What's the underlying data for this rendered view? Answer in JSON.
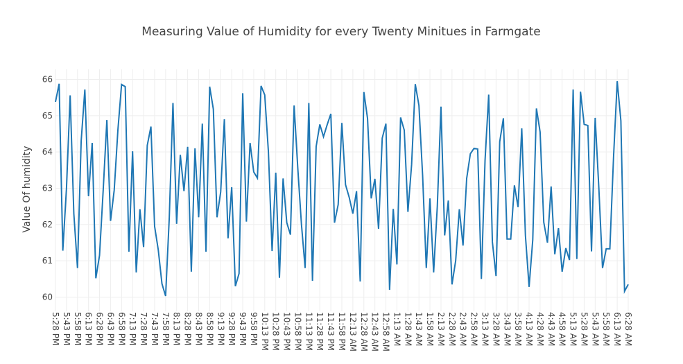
{
  "chart_data": {
    "type": "line",
    "title": "Measuring Value of Humidity for every Twenty Minitues in Farmgate",
    "xlabel": "",
    "ylabel": "Value Of humidity",
    "ylim": [
      60,
      66
    ],
    "yticks": [
      60,
      61,
      62,
      63,
      64,
      65,
      66
    ],
    "xticks": [
      "5:28 PM",
      "5:43 PM",
      "5:58 PM",
      "6:13 PM",
      "6:28 PM",
      "6:43 PM",
      "6:58 PM",
      "7:13 PM",
      "7:28 PM",
      "7:43 PM",
      "7:58 PM",
      "8:13 PM",
      "8:28 PM",
      "8:43 PM",
      "8:58 PM",
      "9:13 PM",
      "9:28 PM",
      "9:43 PM",
      "9:58 PM",
      "10:13 PM",
      "10:28 PM",
      "10:43 PM",
      "10:58 PM",
      "11:13 PM",
      "11:28 PM",
      "11:43 PM",
      "11:58 PM",
      "12:13 AM",
      "12:28 AM",
      "12:43 AM",
      "12:58 AM",
      "1:13 AM",
      "1:28 AM",
      "1:43 AM",
      "1:58 AM",
      "2:13 AM",
      "2:28 AM",
      "2:43 AM",
      "2:58 AM",
      "3:13 AM",
      "3:28 AM",
      "3:43 AM",
      "3:58 AM",
      "4:13 AM",
      "4:28 AM",
      "4:43 AM",
      "4:58 AM",
      "5:13 AM",
      "5:28 AM",
      "5:43 AM",
      "5:58 AM",
      "6:13 AM",
      "6:28 AM"
    ],
    "grid": true,
    "series": [
      {
        "color": "#1f77b4",
        "values": [
          65.38,
          65.88,
          61.28,
          63.0,
          65.56,
          62.3,
          60.8,
          64.3,
          65.72,
          62.78,
          64.25,
          60.52,
          61.15,
          62.95,
          64.88,
          62.1,
          62.95,
          64.6,
          65.86,
          65.8,
          61.25,
          64.02,
          60.68,
          62.42,
          61.38,
          64.18,
          64.7,
          61.95,
          61.3,
          60.37,
          60.03,
          62.2,
          65.35,
          62.02,
          63.92,
          62.92,
          64.14,
          60.7,
          64.1,
          62.2,
          64.78,
          61.25,
          65.8,
          65.18,
          62.2,
          62.9,
          64.9,
          61.62,
          63.03,
          60.3,
          60.65,
          65.62,
          62.08,
          64.25,
          63.45,
          63.28,
          65.82,
          65.57,
          64.0,
          61.27,
          63.43,
          60.53,
          63.27,
          62.05,
          61.72,
          65.28,
          63.55,
          62.0,
          60.8,
          65.35,
          60.45,
          64.15,
          64.76,
          64.42,
          64.75,
          65.05,
          62.05,
          62.55,
          64.8,
          63.1,
          62.75,
          62.3,
          62.92,
          60.43,
          65.65,
          64.92,
          62.72,
          63.26,
          61.88,
          64.38,
          64.78,
          60.2,
          62.43,
          60.9,
          64.95,
          64.6,
          62.35,
          63.65,
          65.87,
          65.28,
          63.35,
          60.8,
          62.72,
          60.68,
          62.5,
          65.25,
          61.7,
          62.66,
          60.35,
          61.0,
          62.42,
          61.42,
          63.27,
          63.95,
          64.1,
          64.08,
          60.5,
          63.76,
          65.58,
          61.52,
          60.58,
          64.28,
          64.93,
          61.6,
          61.6,
          63.08,
          62.48,
          64.65,
          61.7,
          60.28,
          61.58,
          65.2,
          64.55,
          62.06,
          61.5,
          63.05,
          61.18,
          61.9,
          60.7,
          61.35,
          61.02,
          65.72,
          61.05,
          65.66,
          64.76,
          64.73,
          61.26,
          64.94,
          63.0,
          60.8,
          61.33,
          61.33,
          63.85,
          65.95,
          64.86,
          60.16,
          60.35
        ]
      }
    ]
  }
}
